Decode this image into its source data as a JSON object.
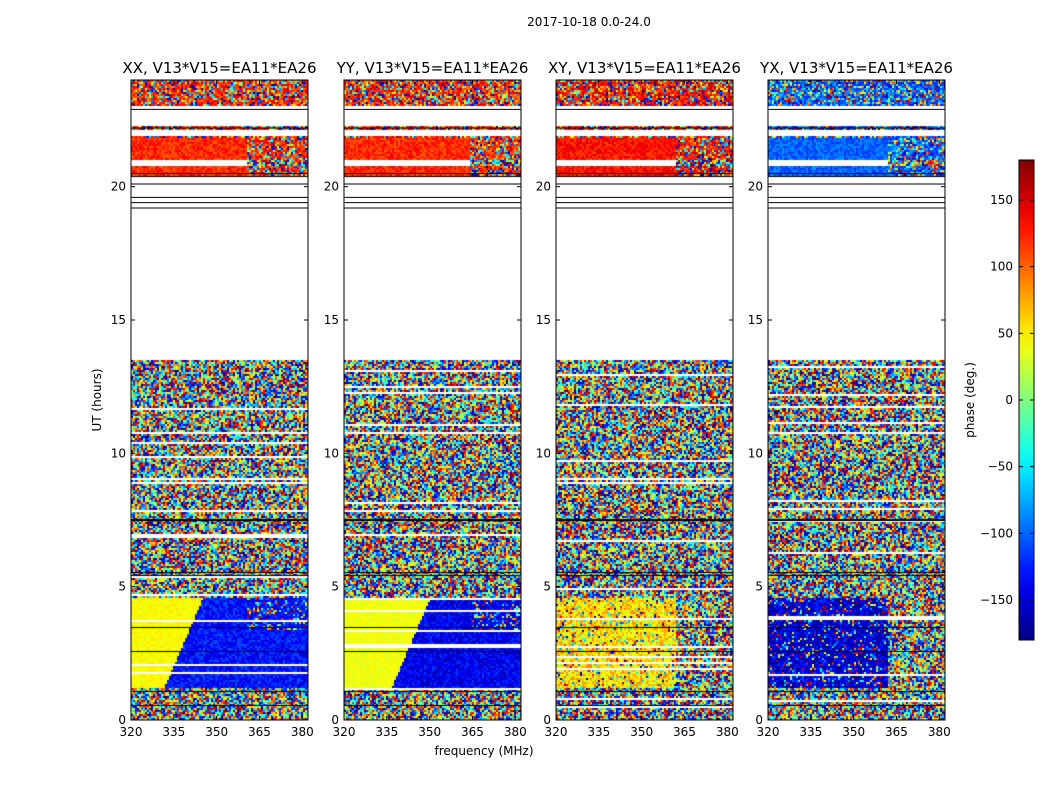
{
  "chart_data": {
    "type": "heatmap",
    "suptitle": "2017-10-18 0.0-24.0",
    "xlabel": "frequency (MHz)",
    "ylabel": "UT (hours)",
    "xlim": [
      320,
      382
    ],
    "ylim": [
      0,
      24
    ],
    "xticks": [
      320,
      335,
      350,
      365,
      380
    ],
    "xtick_labels": [
      "320",
      "335",
      "350",
      "365",
      "380"
    ],
    "yticks": [
      0,
      5,
      10,
      15,
      20
    ],
    "ytick_labels": [
      "0",
      "5",
      "10",
      "15",
      "20"
    ],
    "panels": [
      {
        "title": "XX, V13*V15=EA11*EA26",
        "pol": "XX",
        "upper_phase": 120,
        "lower_left_phase": 45,
        "lower_right_phase": -130,
        "lower_edge_mhz": 345,
        "break_mhz": 360
      },
      {
        "title": "YY, V13*V15=EA11*EA26",
        "pol": "YY",
        "upper_phase": 120,
        "lower_left_phase": 40,
        "lower_right_phase": -140,
        "lower_edge_mhz": 350,
        "break_mhz": 364
      },
      {
        "title": "XY, V13*V15=EA11*EA26",
        "pol": "XY",
        "upper_phase": 130,
        "lower_left_phase": 55,
        "lower_right_phase": null,
        "lower_edge_mhz": null,
        "break_mhz": 362
      },
      {
        "title": "YX, V13*V15=EA11*EA26",
        "pol": "YX",
        "upper_phase": -100,
        "lower_left_phase": -150,
        "lower_right_phase": null,
        "lower_edge_mhz": null,
        "break_mhz": 362
      }
    ],
    "colorbar": {
      "label": "phase (deg.)",
      "range": [
        -180,
        180
      ],
      "ticks": [
        150,
        100,
        50,
        0,
        -50,
        -100,
        -150
      ],
      "tick_labels": [
        "150",
        "100",
        "50",
        "0",
        "−50",
        "−100",
        "−150"
      ]
    },
    "segments_ut": [
      {
        "from": 20.4,
        "to": 24.0,
        "state": "partial"
      },
      {
        "from": 13.5,
        "to": 20.4,
        "state": "no-data"
      },
      {
        "from": 5.5,
        "to": 13.5,
        "state": "noise"
      },
      {
        "from": 0.0,
        "to": 5.5,
        "state": "structured"
      }
    ],
    "colormap": "jet"
  }
}
